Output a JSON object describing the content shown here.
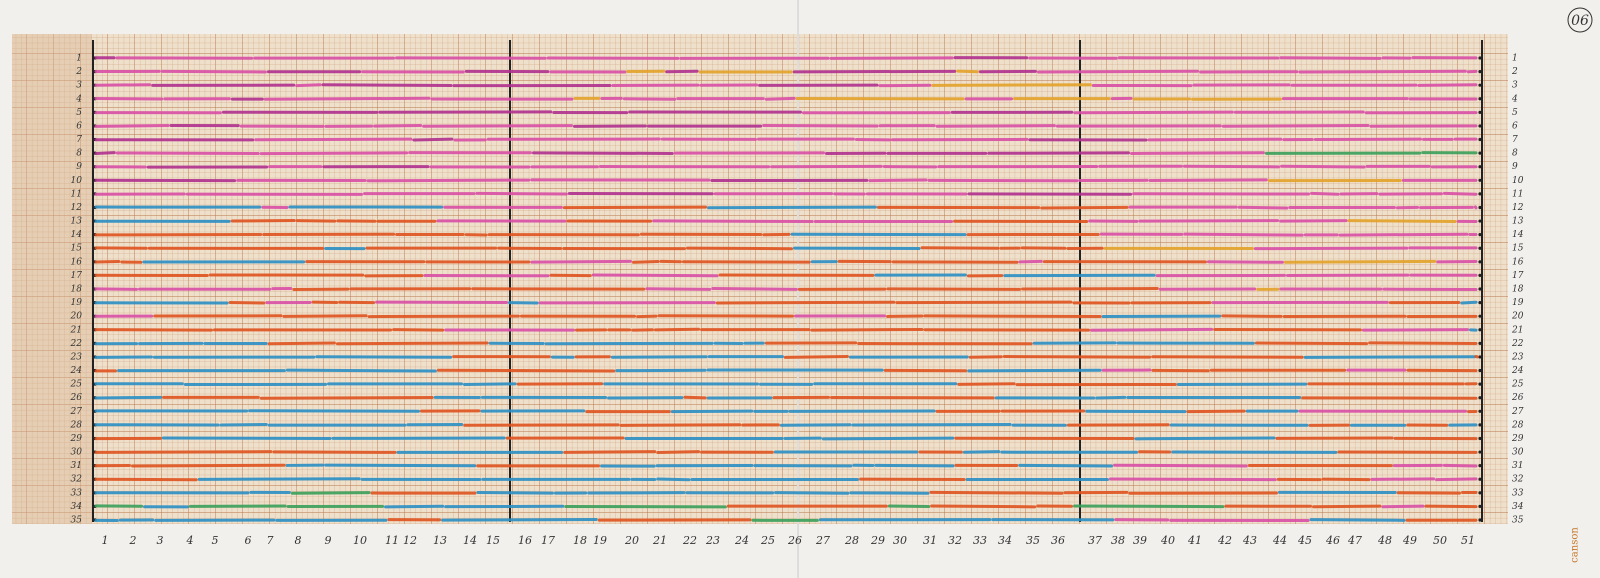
{
  "page_number": "06",
  "brand": "canson",
  "row_labels": [
    "1",
    "2",
    "3",
    "4",
    "5",
    "6",
    "7",
    "8",
    "9",
    "10",
    "11",
    "12",
    "13",
    "14",
    "15",
    "16",
    "17",
    "18",
    "19",
    "20",
    "21",
    "22",
    "23",
    "24",
    "25",
    "26",
    "27",
    "28",
    "29",
    "30",
    "31",
    "32",
    "33",
    "34",
    "35"
  ],
  "column_labels": [
    "1",
    "2",
    "3",
    "4",
    "5",
    "6",
    "7",
    "8",
    "9",
    "10",
    "11",
    "12",
    "13",
    "14",
    "15",
    "16",
    "17",
    "18",
    "19",
    "20",
    "21",
    "22",
    "23",
    "24",
    "25",
    "26",
    "27",
    "28",
    "29",
    "30",
    "31",
    "32",
    "33",
    "34",
    "35",
    "36",
    "37",
    "38",
    "39",
    "40",
    "41",
    "42",
    "43",
    "44",
    "45",
    "46",
    "47",
    "48",
    "49",
    "50",
    "51"
  ]
}
